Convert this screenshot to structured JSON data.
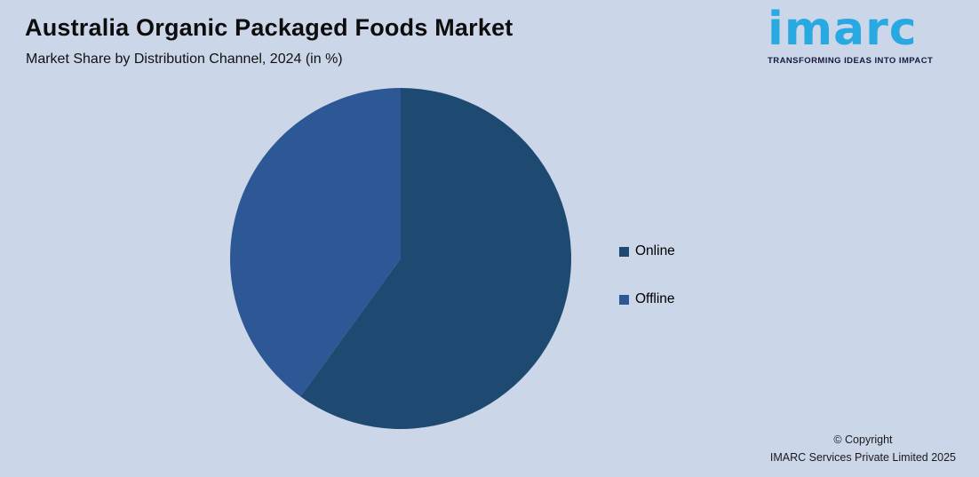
{
  "chart_data": {
    "type": "pie",
    "title": "Australia Organic Packaged Foods Market",
    "subtitle": "Market Share by Distribution Channel, 2024 (in %)",
    "slices": [
      {
        "label": "Online",
        "value": 60,
        "color": "#1e4a72"
      },
      {
        "label": "Offline",
        "value": 40,
        "color": "#2e5795"
      }
    ],
    "unit": "%",
    "start_angle_deg": 0,
    "direction": "clockwise",
    "legend_position": "right"
  },
  "logo": {
    "wordmark": "imarc",
    "tagline": "TRANSFORMING IDEAS INTO IMPACT",
    "brand_color": "#29a9e1",
    "tagline_color": "#17173f"
  },
  "footer": {
    "copyright_line1": "© Copyright",
    "copyright_line2": "IMARC Services Private Limited 2025"
  },
  "canvas": {
    "background": "#ccd6e9"
  }
}
